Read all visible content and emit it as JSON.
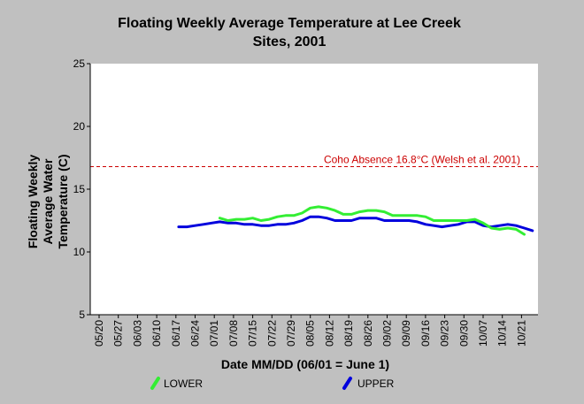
{
  "chart_data": {
    "type": "line",
    "title": [
      "Floating Weekly Average Temperature at  Lee Creek",
      "Sites, 2001"
    ],
    "xlabel": "Date MM/DD (06/01 = June 1)",
    "ylabel": [
      "Floating Weekly",
      "Average Water",
      "Temperature (C)"
    ],
    "ylim": [
      5,
      25
    ],
    "yticks": [
      5,
      10,
      15,
      20,
      25
    ],
    "xticks": [
      "05/20",
      "05/27",
      "06/03",
      "06/10",
      "06/17",
      "06/24",
      "07/01",
      "07/08",
      "07/15",
      "07/22",
      "07/29",
      "08/05",
      "08/12",
      "08/19",
      "08/26",
      "09/02",
      "09/09",
      "09/16",
      "09/23",
      "09/30",
      "10/07",
      "10/14",
      "10/21"
    ],
    "x_first": "05/20",
    "x_step_days": 7,
    "grid": false,
    "reference_line": {
      "label": "Coho Absence 16.8°C (Welsh et al. 2001)",
      "value": 16.8,
      "color": "#cc0000"
    },
    "legend_position": "bottom",
    "series": [
      {
        "name": "LOWER",
        "color": "#33ee33",
        "x": [
          "07/03",
          "07/06",
          "07/09",
          "07/12",
          "07/15",
          "07/18",
          "07/21",
          "07/24",
          "07/27",
          "07/30",
          "08/02",
          "08/05",
          "08/08",
          "08/11",
          "08/14",
          "08/17",
          "08/20",
          "08/23",
          "08/26",
          "08/29",
          "09/01",
          "09/04",
          "09/07",
          "09/10",
          "09/13",
          "09/16",
          "09/19",
          "09/22",
          "09/25",
          "09/28",
          "10/01",
          "10/04",
          "10/07",
          "10/10",
          "10/13",
          "10/16",
          "10/19",
          "10/22"
        ],
        "values": [
          12.7,
          12.5,
          12.6,
          12.6,
          12.7,
          12.5,
          12.6,
          12.8,
          12.9,
          12.9,
          13.1,
          13.5,
          13.6,
          13.5,
          13.3,
          13.0,
          13.0,
          13.2,
          13.3,
          13.3,
          13.2,
          12.9,
          12.9,
          12.9,
          12.9,
          12.8,
          12.5,
          12.5,
          12.5,
          12.5,
          12.5,
          12.6,
          12.3,
          11.9,
          11.8,
          11.9,
          11.8,
          11.4
        ]
      },
      {
        "name": "UPPER",
        "color": "#0000dd",
        "x": [
          "06/18",
          "06/21",
          "06/24",
          "06/27",
          "06/30",
          "07/03",
          "07/06",
          "07/09",
          "07/12",
          "07/15",
          "07/18",
          "07/21",
          "07/24",
          "07/27",
          "07/30",
          "08/02",
          "08/05",
          "08/08",
          "08/11",
          "08/14",
          "08/17",
          "08/20",
          "08/23",
          "08/26",
          "08/29",
          "09/01",
          "09/04",
          "09/07",
          "09/10",
          "09/13",
          "09/16",
          "09/19",
          "09/22",
          "09/25",
          "09/28",
          "10/01",
          "10/04",
          "10/07",
          "10/10",
          "10/13",
          "10/16",
          "10/19",
          "10/22",
          "10/25"
        ],
        "values": [
          12.0,
          12.0,
          12.1,
          12.2,
          12.3,
          12.4,
          12.3,
          12.3,
          12.2,
          12.2,
          12.1,
          12.1,
          12.2,
          12.2,
          12.3,
          12.5,
          12.8,
          12.8,
          12.7,
          12.5,
          12.5,
          12.5,
          12.7,
          12.7,
          12.7,
          12.5,
          12.5,
          12.5,
          12.5,
          12.4,
          12.2,
          12.1,
          12.0,
          12.1,
          12.2,
          12.4,
          12.4,
          12.1,
          12.0,
          12.1,
          12.2,
          12.1,
          11.9,
          11.7
        ]
      }
    ]
  }
}
